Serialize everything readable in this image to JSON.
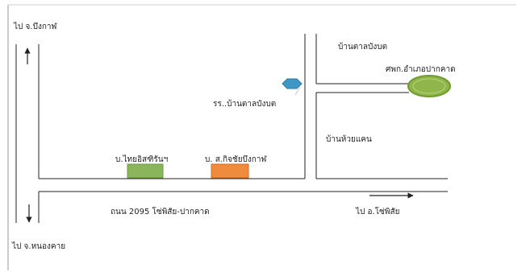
{
  "labels": {
    "to_bueng_kan": "ไป จ.บึงกาฬ",
    "to_nong_khai": "ไป จ.หนองคาย",
    "to_so_phisai": "ไป อ.โซ่พิสัย",
    "road_2095": "ถนน 2095 โซ่พิสัย-ปากคาด",
    "ban_tan_bang_bot": "บ้านตาลบังบต",
    "hospital": "ศพก.อำเภอปากคาด",
    "school": "รร..บ้านตาลบังบต",
    "ban_huai_khaen": "บ้านห้วยแคน",
    "company_thai": "บ.ไทยอิสฑิรันฯ",
    "company_kitchai": "บ. ส.กิจชัยบึงกาฬ"
  },
  "colors": {
    "road_line": "#222222",
    "border": "#9a9a9a",
    "hospital_fill": "#8fb64a",
    "hospital_stroke": "#6f9a2e",
    "school_fill": "#3f97c4",
    "thai_company_fill": "#8ab55a",
    "kitchai_company_fill": "#f08a3c"
  },
  "icons": {
    "hospital": "ellipse-marker",
    "school": "hexagon-marker",
    "thai_company": "rectangle-marker",
    "kitchai_company": "rectangle-marker",
    "arrow": "arrow-icon"
  }
}
